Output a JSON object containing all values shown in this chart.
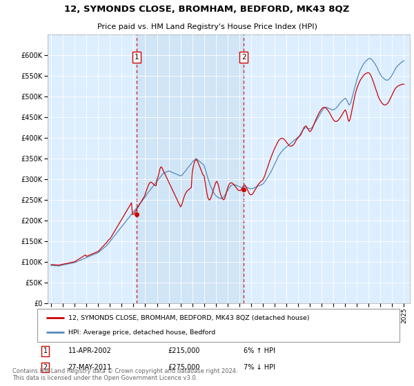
{
  "title": "12, SYMONDS CLOSE, BROMHAM, BEDFORD, MK43 8QZ",
  "subtitle": "Price paid vs. HM Land Registry's House Price Index (HPI)",
  "ylim": [
    0,
    650000
  ],
  "ylabel_ticks": [
    0,
    50000,
    100000,
    150000,
    200000,
    250000,
    300000,
    350000,
    400000,
    450000,
    500000,
    550000,
    600000
  ],
  "xlim_start": 1994.7,
  "xlim_end": 2025.5,
  "sale1_x": 2002.28,
  "sale1_y": 215000,
  "sale1_label": "1",
  "sale1_date": "11-APR-2002",
  "sale1_price": "£215,000",
  "sale1_hpi": "6% ↑ HPI",
  "sale2_x": 2011.37,
  "sale2_y": 275000,
  "sale2_label": "2",
  "sale2_date": "27-MAY-2011",
  "sale2_price": "£275,000",
  "sale2_hpi": "7% ↓ HPI",
  "red_color": "#cc0000",
  "blue_color": "#5588bb",
  "shade_color": "#d0e4f5",
  "grid_bg": "#ddeeff",
  "legend_line1": "12, SYMONDS CLOSE, BROMHAM, BEDFORD, MK43 8QZ (detached house)",
  "legend_line2": "HPI: Average price, detached house, Bedford",
  "footer": "Contains HM Land Registry data © Crown copyright and database right 2024.\nThis data is licensed under the Open Government Licence v3.0.",
  "hpi_monthly_x": [
    1995.0,
    1995.08,
    1995.17,
    1995.25,
    1995.33,
    1995.42,
    1995.5,
    1995.58,
    1995.67,
    1995.75,
    1995.83,
    1995.92,
    1996.0,
    1996.08,
    1996.17,
    1996.25,
    1996.33,
    1996.42,
    1996.5,
    1996.58,
    1996.67,
    1996.75,
    1996.83,
    1996.92,
    1997.0,
    1997.08,
    1997.17,
    1997.25,
    1997.33,
    1997.42,
    1997.5,
    1997.58,
    1997.67,
    1997.75,
    1997.83,
    1997.92,
    1998.0,
    1998.08,
    1998.17,
    1998.25,
    1998.33,
    1998.42,
    1998.5,
    1998.58,
    1998.67,
    1998.75,
    1998.83,
    1998.92,
    1999.0,
    1999.08,
    1999.17,
    1999.25,
    1999.33,
    1999.42,
    1999.5,
    1999.58,
    1999.67,
    1999.75,
    1999.83,
    1999.92,
    2000.0,
    2000.08,
    2000.17,
    2000.25,
    2000.33,
    2000.42,
    2000.5,
    2000.58,
    2000.67,
    2000.75,
    2000.83,
    2000.92,
    2001.0,
    2001.08,
    2001.17,
    2001.25,
    2001.33,
    2001.42,
    2001.5,
    2001.58,
    2001.67,
    2001.75,
    2001.83,
    2001.92,
    2002.0,
    2002.08,
    2002.17,
    2002.25,
    2002.33,
    2002.42,
    2002.5,
    2002.58,
    2002.67,
    2002.75,
    2002.83,
    2002.92,
    2003.0,
    2003.08,
    2003.17,
    2003.25,
    2003.33,
    2003.42,
    2003.5,
    2003.58,
    2003.67,
    2003.75,
    2003.83,
    2003.92,
    2004.0,
    2004.08,
    2004.17,
    2004.25,
    2004.33,
    2004.42,
    2004.5,
    2004.58,
    2004.67,
    2004.75,
    2004.83,
    2004.92,
    2005.0,
    2005.08,
    2005.17,
    2005.25,
    2005.33,
    2005.42,
    2005.5,
    2005.58,
    2005.67,
    2005.75,
    2005.83,
    2005.92,
    2006.0,
    2006.08,
    2006.17,
    2006.25,
    2006.33,
    2006.42,
    2006.5,
    2006.58,
    2006.67,
    2006.75,
    2006.83,
    2006.92,
    2007.0,
    2007.08,
    2007.17,
    2007.25,
    2007.33,
    2007.42,
    2007.5,
    2007.58,
    2007.67,
    2007.75,
    2007.83,
    2007.92,
    2008.0,
    2008.08,
    2008.17,
    2008.25,
    2008.33,
    2008.42,
    2008.5,
    2008.58,
    2008.67,
    2008.75,
    2008.83,
    2008.92,
    2009.0,
    2009.08,
    2009.17,
    2009.25,
    2009.33,
    2009.42,
    2009.5,
    2009.58,
    2009.67,
    2009.75,
    2009.83,
    2009.92,
    2010.0,
    2010.08,
    2010.17,
    2010.25,
    2010.33,
    2010.42,
    2010.5,
    2010.58,
    2010.67,
    2010.75,
    2010.83,
    2010.92,
    2011.0,
    2011.08,
    2011.17,
    2011.25,
    2011.33,
    2011.42,
    2011.5,
    2011.58,
    2011.67,
    2011.75,
    2011.83,
    2011.92,
    2012.0,
    2012.08,
    2012.17,
    2012.25,
    2012.33,
    2012.42,
    2012.5,
    2012.58,
    2012.67,
    2012.75,
    2012.83,
    2012.92,
    2013.0,
    2013.08,
    2013.17,
    2013.25,
    2013.33,
    2013.42,
    2013.5,
    2013.58,
    2013.67,
    2013.75,
    2013.83,
    2013.92,
    2014.0,
    2014.08,
    2014.17,
    2014.25,
    2014.33,
    2014.42,
    2014.5,
    2014.58,
    2014.67,
    2014.75,
    2014.83,
    2014.92,
    2015.0,
    2015.08,
    2015.17,
    2015.25,
    2015.33,
    2015.42,
    2015.5,
    2015.58,
    2015.67,
    2015.75,
    2015.83,
    2015.92,
    2016.0,
    2016.08,
    2016.17,
    2016.25,
    2016.33,
    2016.42,
    2016.5,
    2016.58,
    2016.67,
    2016.75,
    2016.83,
    2016.92,
    2017.0,
    2017.08,
    2017.17,
    2017.25,
    2017.33,
    2017.42,
    2017.5,
    2017.58,
    2017.67,
    2017.75,
    2017.83,
    2017.92,
    2018.0,
    2018.08,
    2018.17,
    2018.25,
    2018.33,
    2018.42,
    2018.5,
    2018.58,
    2018.67,
    2018.75,
    2018.83,
    2018.92,
    2019.0,
    2019.08,
    2019.17,
    2019.25,
    2019.33,
    2019.42,
    2019.5,
    2019.58,
    2019.67,
    2019.75,
    2019.83,
    2019.92,
    2020.0,
    2020.08,
    2020.17,
    2020.25,
    2020.33,
    2020.42,
    2020.5,
    2020.58,
    2020.67,
    2020.75,
    2020.83,
    2020.92,
    2021.0,
    2021.08,
    2021.17,
    2021.25,
    2021.33,
    2021.42,
    2021.5,
    2021.58,
    2021.67,
    2021.75,
    2021.83,
    2021.92,
    2022.0,
    2022.08,
    2022.17,
    2022.25,
    2022.33,
    2022.42,
    2022.5,
    2022.58,
    2022.67,
    2022.75,
    2022.83,
    2022.92,
    2023.0,
    2023.08,
    2023.17,
    2023.25,
    2023.33,
    2023.42,
    2023.5,
    2023.58,
    2023.67,
    2023.75,
    2023.83,
    2023.92,
    2024.0,
    2024.08,
    2024.17,
    2024.25,
    2024.33,
    2024.42,
    2024.5,
    2024.58,
    2024.67,
    2024.75,
    2024.83,
    2024.92,
    2025.0
  ],
  "hpi_monthly_y": [
    90000,
    91000,
    90500,
    91500,
    90000,
    91000,
    90500,
    89500,
    90000,
    90500,
    91000,
    91500,
    92000,
    92500,
    93000,
    93500,
    94000,
    94500,
    95000,
    95500,
    96000,
    96500,
    97000,
    97500,
    98000,
    99000,
    100000,
    101000,
    102000,
    103000,
    104000,
    105000,
    106000,
    107000,
    108000,
    109000,
    110000,
    111000,
    112000,
    113000,
    114000,
    115000,
    116000,
    117000,
    118000,
    119000,
    120000,
    121000,
    122000,
    124000,
    126000,
    128000,
    130000,
    132000,
    134000,
    136000,
    138000,
    140000,
    143000,
    146000,
    149000,
    152000,
    155000,
    158000,
    161000,
    164000,
    167000,
    170000,
    173000,
    176000,
    179000,
    182000,
    185000,
    188000,
    191000,
    194000,
    197000,
    200000,
    203000,
    206000,
    209000,
    212000,
    215000,
    218000,
    221000,
    224000,
    227000,
    230000,
    233000,
    236000,
    239000,
    242000,
    245000,
    248000,
    251000,
    254000,
    257000,
    261000,
    265000,
    268000,
    271000,
    274000,
    277000,
    280000,
    283000,
    286000,
    289000,
    292000,
    295000,
    298000,
    301000,
    304000,
    307000,
    310000,
    313000,
    315000,
    316000,
    317000,
    318000,
    319000,
    320000,
    319000,
    318000,
    317000,
    316000,
    315000,
    314000,
    313000,
    312000,
    311000,
    310000,
    309000,
    308000,
    309000,
    311000,
    314000,
    317000,
    320000,
    323000,
    326000,
    329000,
    332000,
    335000,
    338000,
    341000,
    344000,
    346000,
    348000,
    350000,
    348000,
    346000,
    344000,
    342000,
    340000,
    338000,
    336000,
    334000,
    326000,
    318000,
    310000,
    302000,
    295000,
    288000,
    282000,
    276000,
    271000,
    267000,
    263000,
    260000,
    258000,
    256000,
    255000,
    254000,
    253000,
    254000,
    255000,
    257000,
    260000,
    264000,
    268000,
    272000,
    276000,
    280000,
    283000,
    285000,
    286000,
    287000,
    287000,
    286000,
    285000,
    284000,
    283000,
    282000,
    281000,
    280000,
    281000,
    282000,
    283000,
    282000,
    281000,
    280000,
    279000,
    278000,
    277000,
    277000,
    277000,
    278000,
    279000,
    280000,
    281000,
    282000,
    283000,
    284000,
    285000,
    286000,
    287000,
    288000,
    291000,
    294000,
    297000,
    301000,
    305000,
    309000,
    313000,
    317000,
    321000,
    326000,
    331000,
    336000,
    341000,
    346000,
    351000,
    356000,
    360000,
    363000,
    366000,
    369000,
    372000,
    374000,
    376000,
    378000,
    380000,
    382000,
    384000,
    386000,
    388000,
    390000,
    392000,
    394000,
    396000,
    398000,
    400000,
    402000,
    404000,
    408000,
    412000,
    416000,
    420000,
    422000,
    424000,
    425000,
    424000,
    423000,
    422000,
    422000,
    423000,
    425000,
    428000,
    432000,
    436000,
    440000,
    444000,
    448000,
    452000,
    456000,
    460000,
    464000,
    468000,
    471000,
    473000,
    474000,
    474000,
    473000,
    472000,
    471000,
    470000,
    469000,
    468000,
    468000,
    469000,
    471000,
    473000,
    476000,
    479000,
    482000,
    485000,
    488000,
    490000,
    492000,
    494000,
    496000,
    494000,
    490000,
    484000,
    480000,
    482000,
    488000,
    497000,
    506000,
    515000,
    524000,
    533000,
    541000,
    549000,
    556000,
    562000,
    567000,
    572000,
    576000,
    580000,
    583000,
    586000,
    588000,
    590000,
    592000,
    593000,
    592000,
    590000,
    587000,
    584000,
    581000,
    577000,
    573000,
    568000,
    563000,
    558000,
    554000,
    550000,
    547000,
    545000,
    543000,
    541000,
    540000,
    540000,
    541000,
    543000,
    546000,
    549000,
    553000,
    557000,
    562000,
    566000,
    570000,
    573000,
    576000,
    578000,
    580000,
    582000,
    584000,
    586000,
    587000
  ],
  "price_monthly_y": [
    93000,
    93500,
    92500,
    93000,
    92000,
    92500,
    92000,
    91500,
    92000,
    92500,
    93000,
    93500,
    94000,
    94500,
    95000,
    95500,
    96000,
    96500,
    97000,
    97500,
    98000,
    98500,
    99000,
    99500,
    100000,
    101500,
    103000,
    104500,
    106000,
    107500,
    109000,
    110500,
    112000,
    113500,
    115000,
    116500,
    113000,
    114000,
    115000,
    116000,
    117000,
    118000,
    119000,
    120000,
    121000,
    122000,
    123000,
    124000,
    125000,
    127500,
    130000,
    132500,
    135000,
    137500,
    140000,
    142500,
    145000,
    148000,
    151000,
    154000,
    155000,
    159000,
    163000,
    167000,
    171000,
    175000,
    179000,
    183000,
    187000,
    191000,
    195000,
    199000,
    203000,
    207000,
    211000,
    215000,
    219000,
    223000,
    227000,
    231000,
    235000,
    239000,
    243000,
    214000,
    215000,
    218000,
    222000,
    226000,
    230000,
    234000,
    238000,
    242000,
    246000,
    250000,
    254000,
    258000,
    264000,
    271000,
    278000,
    284000,
    289000,
    292000,
    293000,
    291000,
    289000,
    287000,
    285000,
    284000,
    300000,
    305000,
    315000,
    325000,
    330000,
    328000,
    323000,
    318000,
    313000,
    308000,
    303000,
    298000,
    293000,
    288000,
    283000,
    278000,
    273000,
    268000,
    263000,
    258000,
    253000,
    248000,
    243000,
    238000,
    233000,
    236000,
    244000,
    252000,
    259000,
    265000,
    269000,
    272000,
    274000,
    276000,
    278000,
    280000,
    316000,
    330000,
    340000,
    345000,
    348000,
    345000,
    340000,
    334000,
    328000,
    322000,
    316000,
    310000,
    309000,
    295000,
    280000,
    265000,
    255000,
    250000,
    250000,
    255000,
    262000,
    270000,
    278000,
    285000,
    292000,
    295000,
    290000,
    282000,
    272000,
    263000,
    256000,
    252000,
    250000,
    253000,
    260000,
    270000,
    278000,
    284000,
    289000,
    291000,
    291000,
    290000,
    288000,
    285000,
    282000,
    279000,
    276000,
    273000,
    273000,
    272000,
    275000,
    278000,
    282000,
    286000,
    285000,
    281000,
    276000,
    271000,
    266000,
    263000,
    262000,
    263000,
    266000,
    270000,
    274000,
    278000,
    282000,
    286000,
    289000,
    292000,
    294000,
    296000,
    298000,
    303000,
    309000,
    316000,
    323000,
    330000,
    337000,
    344000,
    351000,
    357000,
    363000,
    369000,
    374000,
    379000,
    384000,
    389000,
    393000,
    396000,
    398000,
    399000,
    399000,
    398000,
    396000,
    393000,
    390000,
    387000,
    384000,
    381000,
    380000,
    380000,
    381000,
    383000,
    386000,
    390000,
    394000,
    398000,
    401000,
    403000,
    406000,
    409000,
    414000,
    420000,
    425000,
    428000,
    429000,
    426000,
    422000,
    418000,
    415000,
    417000,
    421000,
    426000,
    432000,
    438000,
    444000,
    449000,
    454000,
    459000,
    463000,
    467000,
    470000,
    473000,
    474000,
    474000,
    473000,
    471000,
    468000,
    465000,
    461000,
    457000,
    452000,
    448000,
    444000,
    441000,
    440000,
    440000,
    441000,
    443000,
    446000,
    449000,
    453000,
    457000,
    461000,
    465000,
    468000,
    464000,
    455000,
    444000,
    440000,
    446000,
    456000,
    468000,
    480000,
    492000,
    503000,
    513000,
    520000,
    527000,
    533000,
    538000,
    542000,
    546000,
    549000,
    552000,
    554000,
    556000,
    557000,
    558000,
    558000,
    556000,
    552000,
    547000,
    541000,
    534000,
    527000,
    520000,
    513000,
    506000,
    499000,
    494000,
    490000,
    486000,
    483000,
    481000,
    480000,
    480000,
    481000,
    483000,
    486000,
    490000,
    495000,
    500000,
    505000,
    510000,
    515000,
    519000,
    522000,
    524000,
    526000,
    527000,
    528000,
    529000,
    530000,
    530000,
    530000
  ]
}
